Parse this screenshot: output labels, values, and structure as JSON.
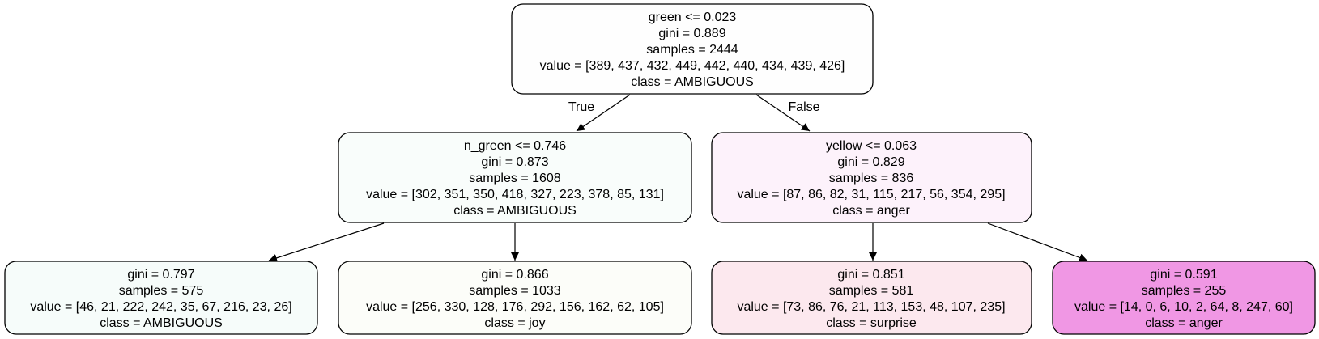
{
  "nodes": [
    {
      "id": "n0",
      "fill": "#fefefe",
      "lines": [
        "green <= 0.023",
        "gini = 0.889",
        "samples = 2444",
        "value = [389, 437, 432, 449, 442, 440, 434, 439, 426]",
        "class = AMBIGUOUS"
      ]
    },
    {
      "id": "n1",
      "fill": "#f9fdfb",
      "lines": [
        "n_green <= 0.746",
        "gini = 0.873",
        "samples = 1608",
        "value = [302, 351, 350, 418, 327, 223, 378, 85, 131]",
        "class = AMBIGUOUS"
      ]
    },
    {
      "id": "n2",
      "fill": "#fdf2fb",
      "lines": [
        "yellow <= 0.063",
        "gini = 0.829",
        "samples = 836",
        "value = [87, 86, 82, 31, 115, 217, 56, 354, 295]",
        "class = anger"
      ]
    },
    {
      "id": "n3",
      "fill": "#f6fcfa",
      "lines": [
        "gini = 0.797",
        "samples = 575",
        "value = [46, 21, 222, 242, 35, 67, 216, 23, 26]",
        "class = AMBIGUOUS"
      ]
    },
    {
      "id": "n4",
      "fill": "#fcfdf9",
      "lines": [
        "gini = 0.866",
        "samples = 1033",
        "value = [256, 330, 128, 176, 292, 156, 162, 62, 105]",
        "class = joy"
      ]
    },
    {
      "id": "n5",
      "fill": "#fce8ee",
      "lines": [
        "gini = 0.851",
        "samples = 581",
        "value = [73, 86, 76, 21, 113, 153, 48, 107, 235]",
        "class = surprise"
      ]
    },
    {
      "id": "n6",
      "fill": "#f097e4",
      "lines": [
        "gini = 0.591",
        "samples = 255",
        "value = [14, 0, 6, 10, 2, 64, 8, 247, 60]",
        "class = anger"
      ]
    }
  ],
  "edge_labels": {
    "true_label": "True",
    "false_label": "False"
  }
}
